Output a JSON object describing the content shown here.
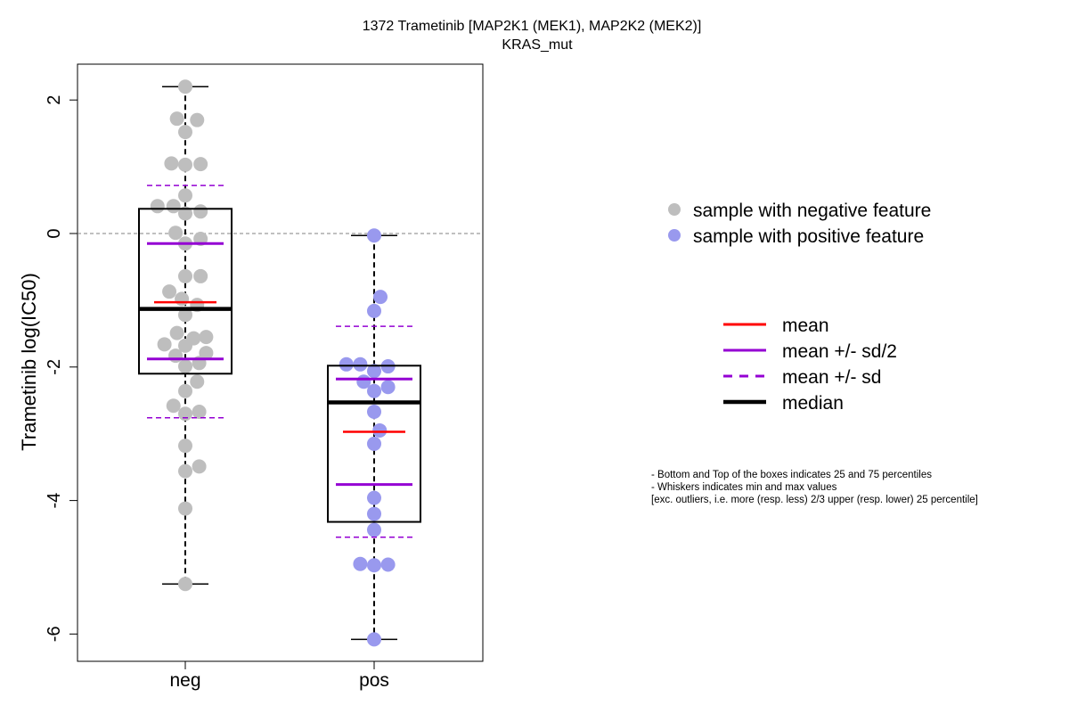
{
  "chart_data": {
    "type": "box",
    "title": "1372 Trametinib [MAP2K1 (MEK1), MAP2K2 (MEK2)]",
    "subtitle": "KRAS_mut",
    "ylabel": "Trametinib log(IC50)",
    "xlabel": "",
    "ylim": [
      -6.4,
      2.5
    ],
    "yticks": [
      -6,
      -4,
      -2,
      0,
      2
    ],
    "categories": [
      "neg",
      "pos"
    ],
    "reference_line": 0,
    "groups": [
      {
        "name": "neg",
        "color": "#bebebe",
        "q1": -2.1,
        "median": -1.13,
        "q3": 0.37,
        "whisker_min": -5.25,
        "whisker_max": 2.2,
        "mean": -1.03,
        "mean_minus_half_sd": -1.88,
        "mean_plus_half_sd": -0.15,
        "mean_minus_sd": -2.76,
        "mean_plus_sd": 0.72,
        "points": [
          {
            "x": 0.0,
            "y": 2.2
          },
          {
            "x": -0.12,
            "y": 1.72
          },
          {
            "x": 0.17,
            "y": 1.7
          },
          {
            "x": 0.0,
            "y": 1.52
          },
          {
            "x": -0.2,
            "y": 1.05
          },
          {
            "x": 0.0,
            "y": 1.03
          },
          {
            "x": 0.22,
            "y": 1.04
          },
          {
            "x": 0.0,
            "y": 0.57
          },
          {
            "x": -0.4,
            "y": 0.41
          },
          {
            "x": -0.17,
            "y": 0.41
          },
          {
            "x": 0.0,
            "y": 0.3
          },
          {
            "x": 0.22,
            "y": 0.33
          },
          {
            "x": -0.14,
            "y": 0.01
          },
          {
            "x": 0.22,
            "y": -0.08
          },
          {
            "x": 0.0,
            "y": -0.15
          },
          {
            "x": 0.0,
            "y": -0.64
          },
          {
            "x": 0.22,
            "y": -0.64
          },
          {
            "x": -0.23,
            "y": -0.87
          },
          {
            "x": -0.05,
            "y": -0.98
          },
          {
            "x": 0.17,
            "y": -1.07
          },
          {
            "x": 0.0,
            "y": -1.22
          },
          {
            "x": -0.12,
            "y": -1.49
          },
          {
            "x": 0.12,
            "y": -1.57
          },
          {
            "x": 0.3,
            "y": -1.55
          },
          {
            "x": -0.3,
            "y": -1.66
          },
          {
            "x": 0.0,
            "y": -1.68
          },
          {
            "x": -0.14,
            "y": -1.83
          },
          {
            "x": 0.3,
            "y": -1.79
          },
          {
            "x": 0.0,
            "y": -1.99
          },
          {
            "x": 0.2,
            "y": -1.94
          },
          {
            "x": 0.17,
            "y": -2.22
          },
          {
            "x": 0.0,
            "y": -2.36
          },
          {
            "x": -0.17,
            "y": -2.58
          },
          {
            "x": 0.0,
            "y": -2.7
          },
          {
            "x": 0.2,
            "y": -2.67
          },
          {
            "x": 0.0,
            "y": -3.18
          },
          {
            "x": 0.0,
            "y": -3.56
          },
          {
            "x": 0.2,
            "y": -3.49
          },
          {
            "x": 0.0,
            "y": -4.12
          },
          {
            "x": 0.0,
            "y": -5.25
          }
        ]
      },
      {
        "name": "pos",
        "color": "#9999ee",
        "q1": -4.32,
        "median": -2.53,
        "q3": -1.98,
        "whisker_min": -6.08,
        "whisker_max": -0.03,
        "mean": -2.97,
        "mean_minus_half_sd": -3.76,
        "mean_plus_half_sd": -2.18,
        "mean_minus_sd": -4.55,
        "mean_plus_sd": -1.39,
        "points": [
          {
            "x": 0.0,
            "y": -0.03
          },
          {
            "x": 0.09,
            "y": -0.95
          },
          {
            "x": 0.0,
            "y": -1.16
          },
          {
            "x": -0.4,
            "y": -1.96
          },
          {
            "x": -0.2,
            "y": -1.96
          },
          {
            "x": 0.0,
            "y": -2.06
          },
          {
            "x": 0.2,
            "y": -1.99
          },
          {
            "x": -0.15,
            "y": -2.22
          },
          {
            "x": 0.0,
            "y": -2.36
          },
          {
            "x": 0.2,
            "y": -2.3
          },
          {
            "x": 0.0,
            "y": -2.67
          },
          {
            "x": 0.08,
            "y": -2.95
          },
          {
            "x": 0.0,
            "y": -3.15
          },
          {
            "x": 0.0,
            "y": -3.96
          },
          {
            "x": 0.0,
            "y": -4.2
          },
          {
            "x": 0.0,
            "y": -4.44
          },
          {
            "x": -0.2,
            "y": -4.95
          },
          {
            "x": 0.0,
            "y": -4.97
          },
          {
            "x": 0.2,
            "y": -4.96
          },
          {
            "x": 0.0,
            "y": -6.08
          }
        ]
      }
    ],
    "legend_points": [
      {
        "label": "sample with negative feature",
        "color": "#bebebe"
      },
      {
        "label": "sample with positive feature",
        "color": "#9999ee"
      }
    ],
    "legend_lines": [
      {
        "label": "mean",
        "color": "#ff0000",
        "style": "solid"
      },
      {
        "label": "mean +/- sd/2",
        "color": "#9400d3",
        "style": "solid"
      },
      {
        "label": "mean +/- sd",
        "color": "#9400d3",
        "style": "dashed"
      },
      {
        "label": "median",
        "color": "#000000",
        "style": "thick"
      }
    ],
    "notes": [
      "- Bottom and Top of the boxes indicates 25 and 75 percentiles",
      "- Whiskers indicates min and max values",
      "[exc. outliers, i.e. more (resp. less) 2/3 upper (resp. lower) 25 percentile]"
    ],
    "colors": {
      "mean": "#ff0000",
      "sd": "#9400d3",
      "median": "#000000",
      "reference": "#808080"
    }
  }
}
